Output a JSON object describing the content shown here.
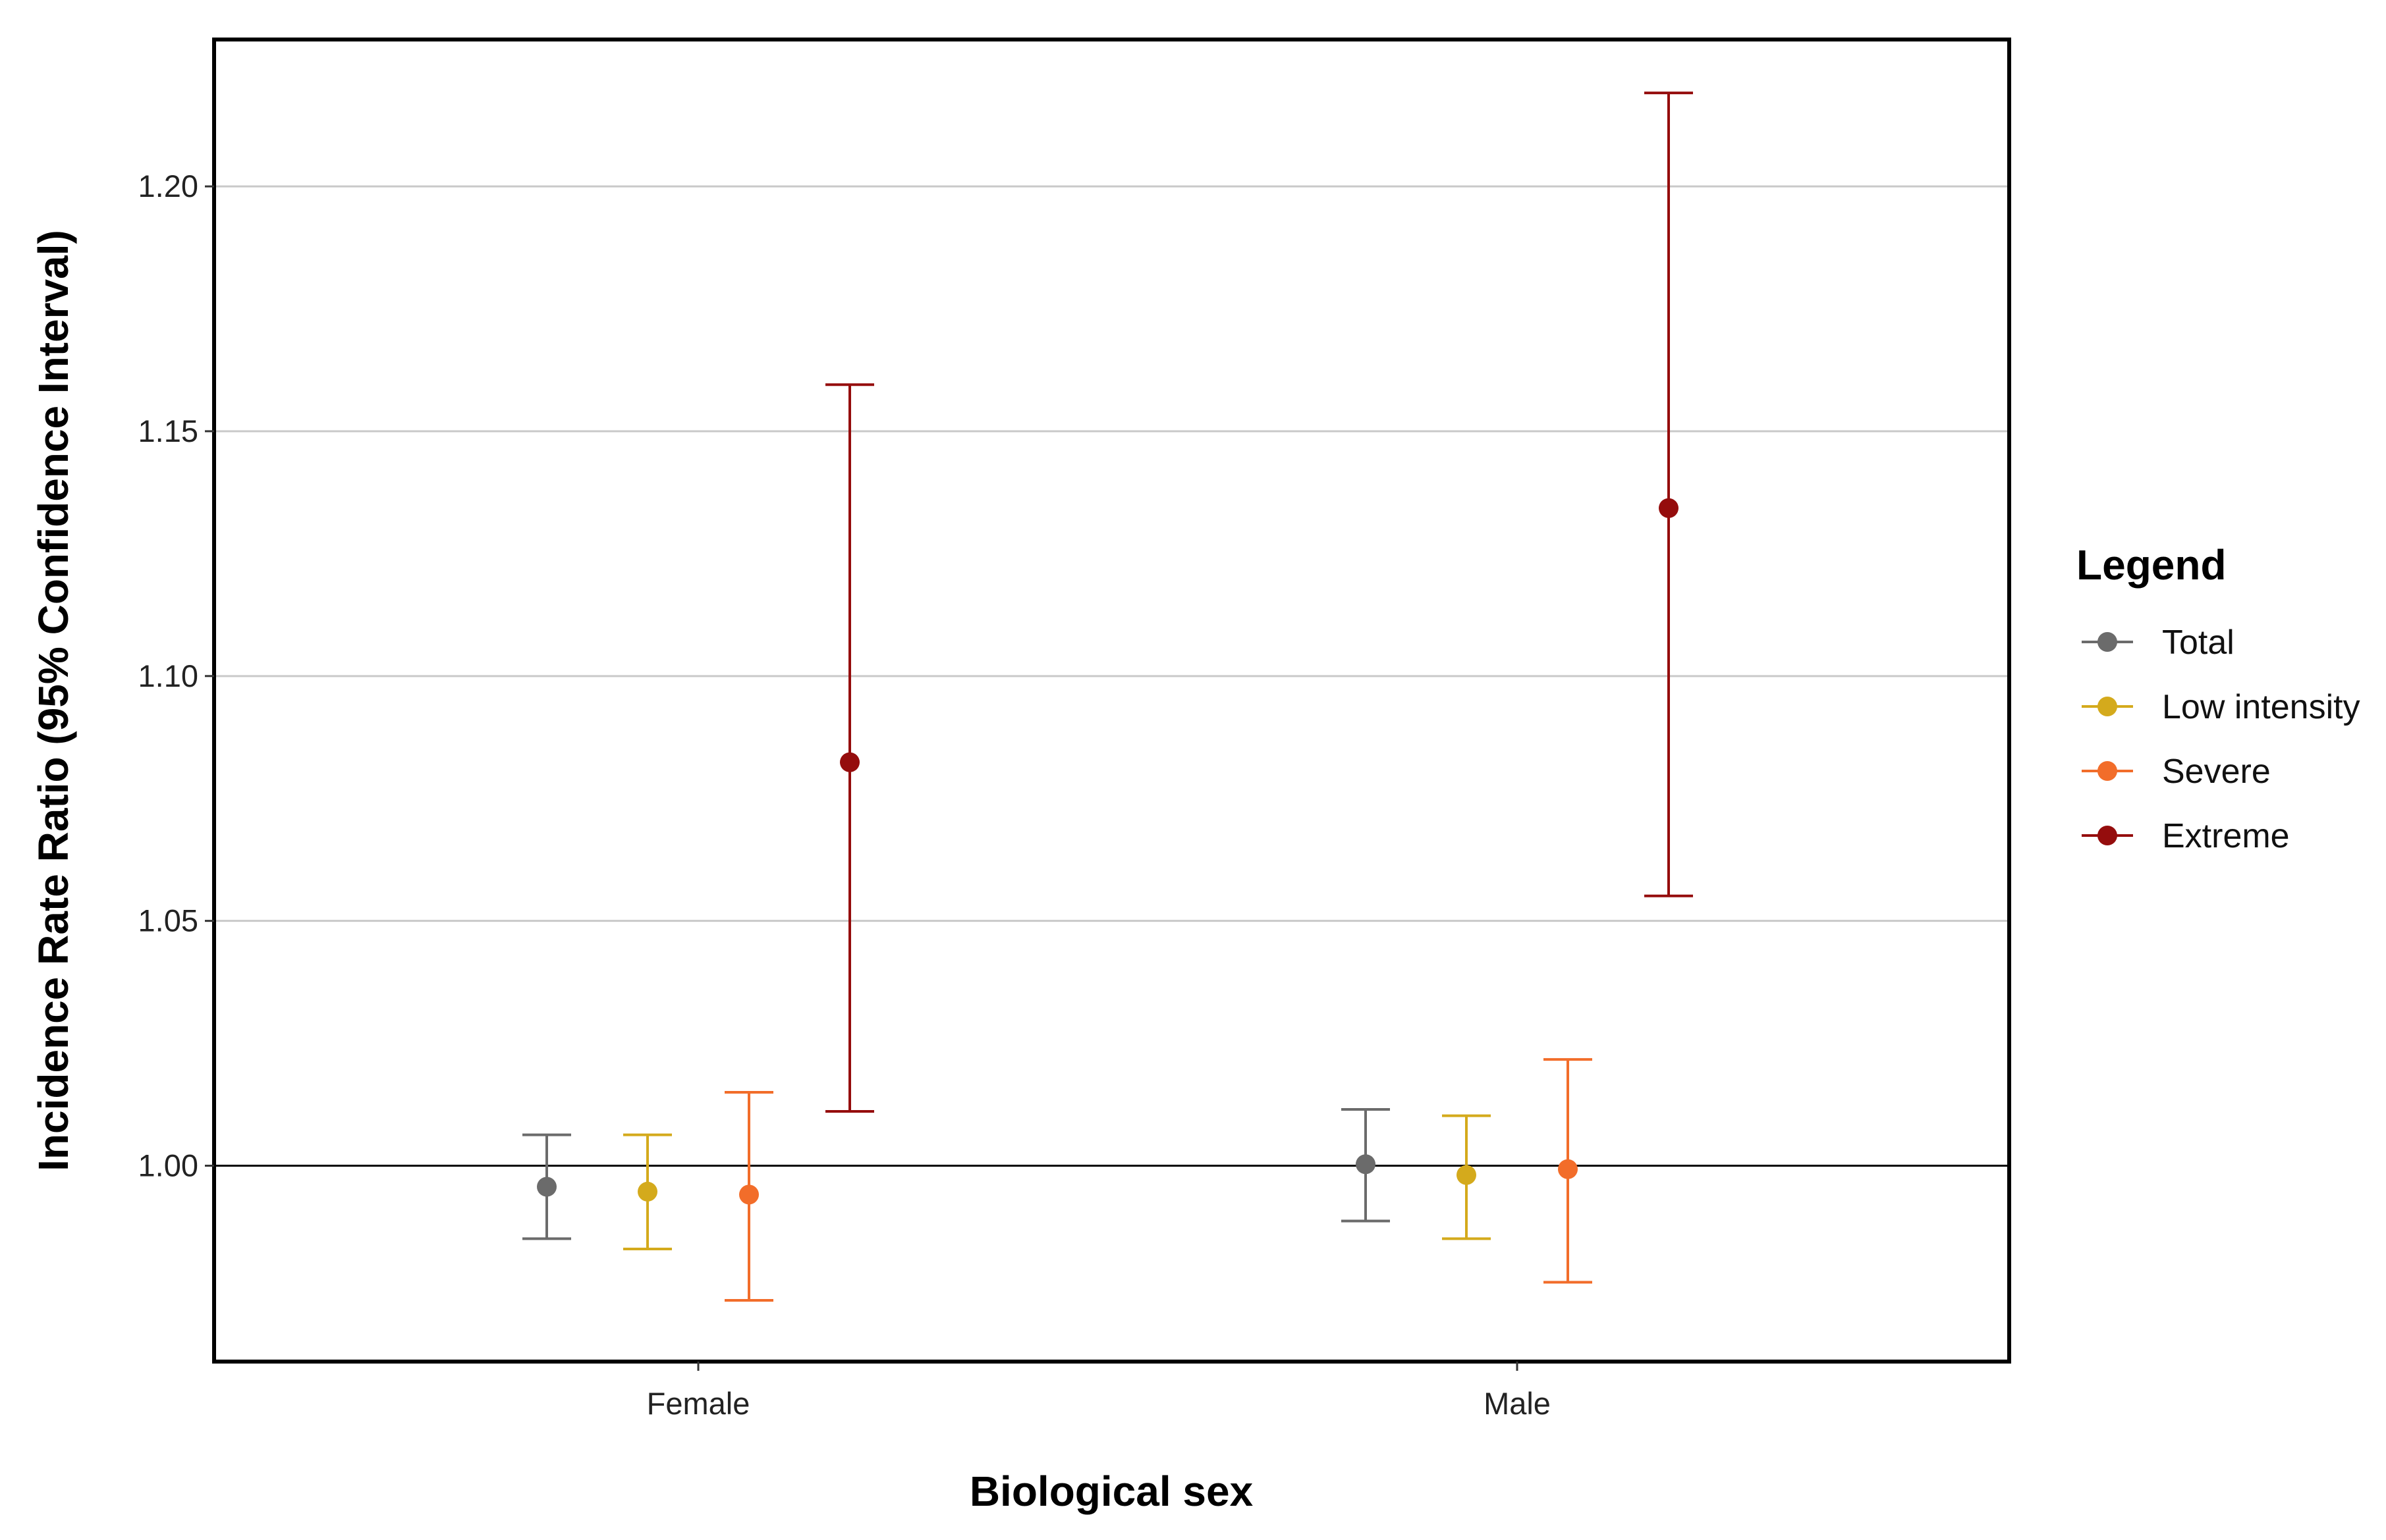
{
  "chart_data": {
    "type": "scatter",
    "subtype": "point-range with 95% confidence interval error bars",
    "title": "",
    "xlabel": "Biological sex",
    "ylabel": "Incidence Rate Ratio (95% Confidence Interval)",
    "categories": [
      "Female",
      "Male"
    ],
    "ylim": [
      0.96,
      1.23
    ],
    "yticks": [
      "1.00",
      "1.05",
      "1.10",
      "1.15",
      "1.20"
    ],
    "reference_line": 1.0,
    "grid": "horizontal major",
    "legend": {
      "title": "Legend",
      "position": "right"
    },
    "series": [
      {
        "name": "Total",
        "color": "#6b6b6b",
        "values": [
          0.9957,
          1.0003
        ],
        "lower": [
          0.9851,
          0.9887
        ],
        "upper": [
          1.0063,
          1.0115
        ]
      },
      {
        "name": "Low intensity",
        "color": "#d4aa1c",
        "values": [
          0.9947,
          0.9981
        ],
        "lower": [
          0.983,
          0.9851
        ],
        "upper": [
          1.0063,
          1.0102
        ]
      },
      {
        "name": "Severe",
        "color": "#f26d2a",
        "values": [
          0.9941,
          0.9993
        ],
        "lower": [
          0.9725,
          0.9762
        ],
        "upper": [
          1.015,
          1.0217
        ]
      },
      {
        "name": "Extreme",
        "color": "#950d0d",
        "values": [
          1.0824,
          1.1343
        ],
        "lower": [
          1.0111,
          1.0551
        ],
        "upper": [
          1.1595,
          1.2191
        ]
      }
    ]
  }
}
